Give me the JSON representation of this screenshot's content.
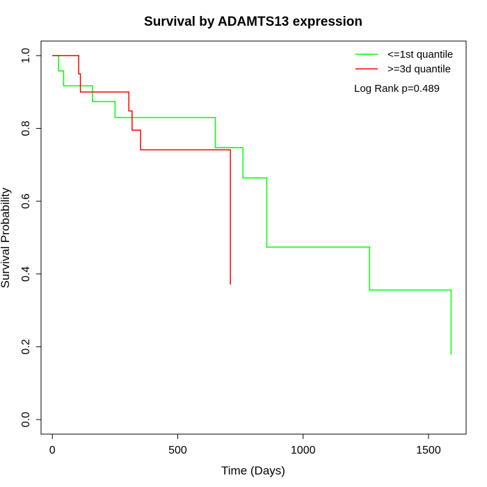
{
  "chart_data": {
    "type": "line",
    "title": "Survival by ADAMTS13 expression",
    "xlabel": "Time (Days)",
    "ylabel": "Survival Probability",
    "xlim": [
      -45,
      1650
    ],
    "ylim": [
      -0.04,
      1.04
    ],
    "xticks": [
      0,
      500,
      1000,
      1500
    ],
    "yticks": [
      0.0,
      0.2,
      0.4,
      0.6,
      0.8,
      1.0
    ],
    "xtick_labels": [
      "0",
      "500",
      "1000",
      "1500"
    ],
    "ytick_labels": [
      "0.0",
      "0.2",
      "0.4",
      "0.6",
      "0.8",
      "1.0"
    ],
    "grid": false,
    "legend_position": "top-right",
    "annotation": "Log Rank p=0.489",
    "series": [
      {
        "name": "<=1st quantile",
        "color": "#00ff00",
        "step": true,
        "x": [
          0,
          25,
          45,
          160,
          250,
          560,
          650,
          760,
          855,
          1265,
          1590
        ],
        "y": [
          1.0,
          0.958,
          0.917,
          0.874,
          0.83,
          0.83,
          0.747,
          0.664,
          0.474,
          0.356,
          0.178
        ]
      },
      {
        "name": ">=3d quantile",
        "color": "#ff0000",
        "step": true,
        "x": [
          0,
          105,
          112,
          305,
          318,
          352,
          680,
          710
        ],
        "y": [
          1.0,
          0.95,
          0.9,
          0.848,
          0.795,
          0.741,
          0.741,
          0.371
        ]
      }
    ]
  }
}
